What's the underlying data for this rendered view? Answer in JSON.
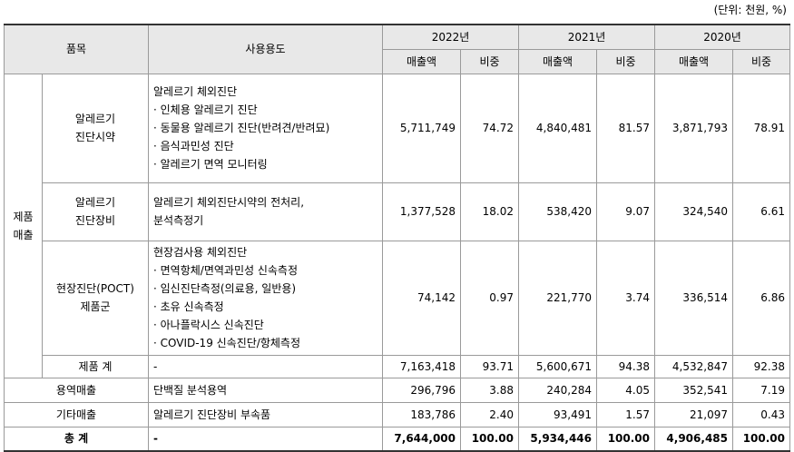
{
  "unit_note": "(단위: 천원, %)",
  "headers": {
    "item": "품목",
    "usage": "사용용도",
    "years": [
      "2022년",
      "2021년",
      "2020년"
    ],
    "sales": "매출액",
    "ratio": "비중"
  },
  "group_label": "제품\n매출",
  "rows": [
    {
      "name": "알레르기\n진단시약",
      "usage": [
        "알레르기 체외진단",
        "· 인체용 알레르기 진단",
        "· 동물용 알레르기 진단(반려견/반려묘)",
        "· 음식과민성 진단",
        "· 알레르기 면역 모니터링"
      ],
      "values": [
        "5,711,749",
        "74.72",
        "4,840,481",
        "81.57",
        "3,871,793",
        "78.91"
      ]
    },
    {
      "name": "알레르기\n진단장비",
      "usage": [
        "알레르기 체외진단시약의 전처리,",
        "분석측정기"
      ],
      "values": [
        "1,377,528",
        "18.02",
        "538,420",
        "9.07",
        "324,540",
        "6.61"
      ]
    },
    {
      "name": "현장진단(POCT)\n제품군",
      "usage": [
        "현장검사용 체외진단",
        "· 면역항체/면역과민성 신속측정",
        "· 임신진단측정(의료용, 일반용)",
        "· 초유 신속측정",
        "· 아나플락시스 신속진단",
        "· COVID-19 신속진단/항체측정"
      ],
      "values": [
        "74,142",
        "0.97",
        "221,770",
        "3.74",
        "336,514",
        "6.86"
      ]
    },
    {
      "name": "제품 계",
      "usage": [
        "-"
      ],
      "values": [
        "7,163,418",
        "93.71",
        "5,600,671",
        "94.38",
        "4,532,847",
        "92.38"
      ]
    }
  ],
  "other_rows": [
    {
      "name": "용역매출",
      "usage": "단백질 분석용역",
      "values": [
        "296,796",
        "3.88",
        "240,284",
        "4.05",
        "352,541",
        "7.19"
      ]
    },
    {
      "name": "기타매출",
      "usage": "알레르기 진단장비 부속품",
      "values": [
        "183,786",
        "2.40",
        "93,491",
        "1.57",
        "21,097",
        "0.43"
      ]
    }
  ],
  "total": {
    "name": "총 계",
    "usage": "-",
    "values": [
      "7,644,000",
      "100.00",
      "5,934,446",
      "100.00",
      "4,906,485",
      "100.00"
    ]
  }
}
